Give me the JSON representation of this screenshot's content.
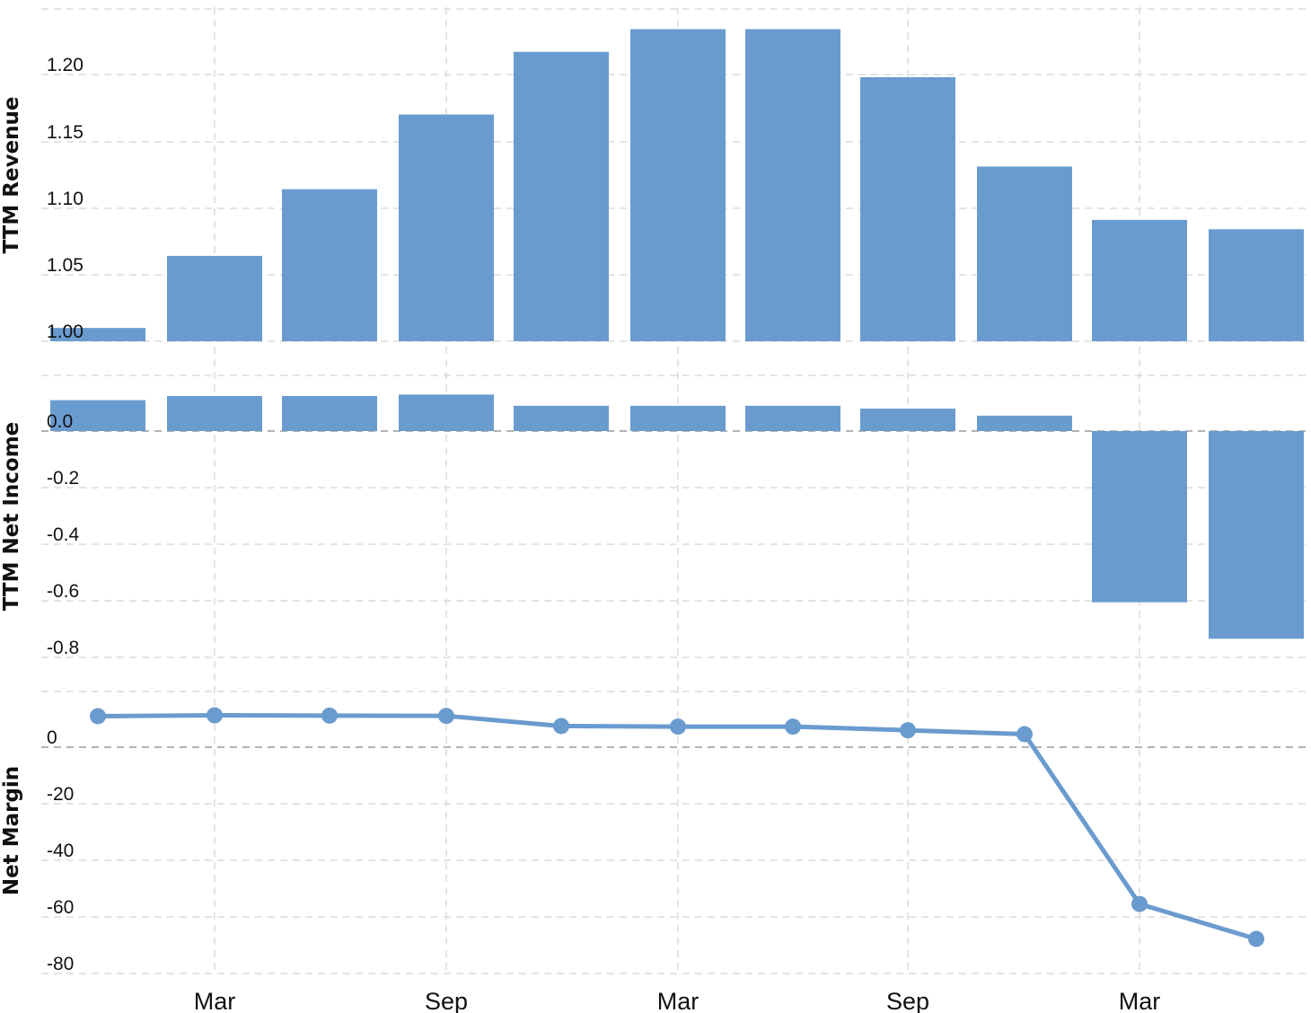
{
  "colors": {
    "bar": "#6a9bcf",
    "line": "#6a9bcf",
    "grid": "#dcdcdc",
    "zero_line": "#9a9a9a",
    "text": "#111111"
  },
  "x_axis": {
    "tick_labels": [
      "Mar",
      "Sep",
      "Mar",
      "Sep",
      "Mar"
    ]
  },
  "chart_data": [
    {
      "type": "bar",
      "ylabel": "TTM Revenue",
      "ylim": [
        1.0,
        1.235
      ],
      "y_ticks": [
        "1.00",
        "1.05",
        "1.10",
        "1.15",
        "1.20"
      ],
      "grid": true,
      "series": [
        {
          "values": [
            1.01,
            1.064,
            1.114,
            1.17,
            1.217,
            1.234,
            1.234,
            1.198,
            1.131,
            1.091,
            1.084
          ]
        }
      ]
    },
    {
      "type": "bar",
      "ylabel": "TTM Net Income",
      "ylim": [
        -0.8,
        0.2
      ],
      "y_ticks": [
        "0.0",
        "-0.2",
        "-0.4",
        "-0.6",
        "-0.8"
      ],
      "grid": true,
      "series": [
        {
          "values": [
            0.11,
            0.125,
            0.125,
            0.13,
            0.09,
            0.09,
            0.09,
            0.08,
            0.055,
            -0.61,
            -0.74
          ]
        }
      ]
    },
    {
      "type": "line",
      "ylabel": "Net Margin",
      "ylim": [
        -80,
        15
      ],
      "y_ticks": [
        "0",
        "-20",
        "-40",
        "-60",
        "-80"
      ],
      "grid": true,
      "series": [
        {
          "values": [
            11.0,
            11.3,
            11.2,
            11.1,
            7.5,
            7.3,
            7.3,
            6.0,
            4.6,
            -55.6,
            -68.0
          ]
        }
      ]
    }
  ]
}
